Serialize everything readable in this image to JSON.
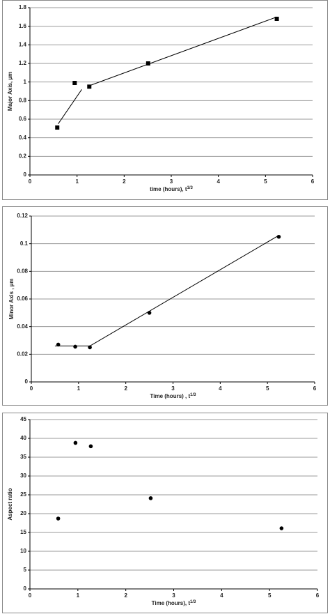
{
  "chart_data": [
    {
      "type": "scatter",
      "marker": "square",
      "color": "#000000",
      "grid": true,
      "x_label": "time (hours), t",
      "x_label_sup": "1/3",
      "y_label": "Major Axis, µm",
      "x": [
        0.58,
        0.95,
        1.26,
        2.51,
        5.24
      ],
      "values": [
        0.51,
        0.99,
        0.95,
        1.2,
        1.68
      ],
      "fit_lines": [
        {
          "x": [
            0.6,
            1.1
          ],
          "values": [
            0.55,
            0.92
          ]
        },
        {
          "x": [
            1.26,
            5.24
          ],
          "values": [
            0.96,
            1.7
          ]
        }
      ],
      "xlim": [
        0,
        6
      ],
      "xticks": [
        0,
        1,
        2,
        3,
        4,
        5,
        6
      ],
      "ylim": [
        0,
        1.8
      ],
      "yticks": [
        0,
        0.2,
        0.4,
        0.6,
        0.8,
        1,
        1.2,
        1.4,
        1.6,
        1.8
      ]
    },
    {
      "type": "scatter",
      "marker": "circle",
      "color": "#000000",
      "grid": true,
      "x_label": "Time (hours) , t",
      "x_label_sup": "1/3",
      "y_label": "Minor Axis , µm",
      "x": [
        0.57,
        0.93,
        1.24,
        2.5,
        5.24
      ],
      "values": [
        0.027,
        0.0255,
        0.025,
        0.05,
        0.105
      ],
      "fit_lines": [
        {
          "x": [
            0.5,
            1.24
          ],
          "values": [
            0.026,
            0.026
          ]
        },
        {
          "x": [
            1.24,
            5.24
          ],
          "values": [
            0.026,
            0.106
          ]
        }
      ],
      "xlim": [
        0,
        6
      ],
      "xticks": [
        0,
        1,
        2,
        3,
        4,
        5,
        6
      ],
      "ylim": [
        0,
        0.12
      ],
      "yticks": [
        0,
        0.02,
        0.04,
        0.06,
        0.08,
        0.1,
        0.12
      ]
    },
    {
      "type": "scatter",
      "marker": "circle",
      "color": "#000000",
      "grid": true,
      "x_label": "Time (hours), t",
      "x_label_sup": "1/3",
      "y_label": "Aspect ratio",
      "x": [
        0.59,
        0.95,
        1.27,
        2.52,
        5.25
      ],
      "values": [
        18.7,
        38.8,
        37.9,
        24.1,
        16.1
      ],
      "xlim": [
        0,
        6
      ],
      "xticks": [
        0,
        1,
        2,
        3,
        4,
        5,
        6
      ],
      "ylim": [
        0,
        45
      ],
      "yticks": [
        0,
        5,
        10,
        15,
        20,
        25,
        30,
        35,
        40,
        45
      ]
    }
  ]
}
